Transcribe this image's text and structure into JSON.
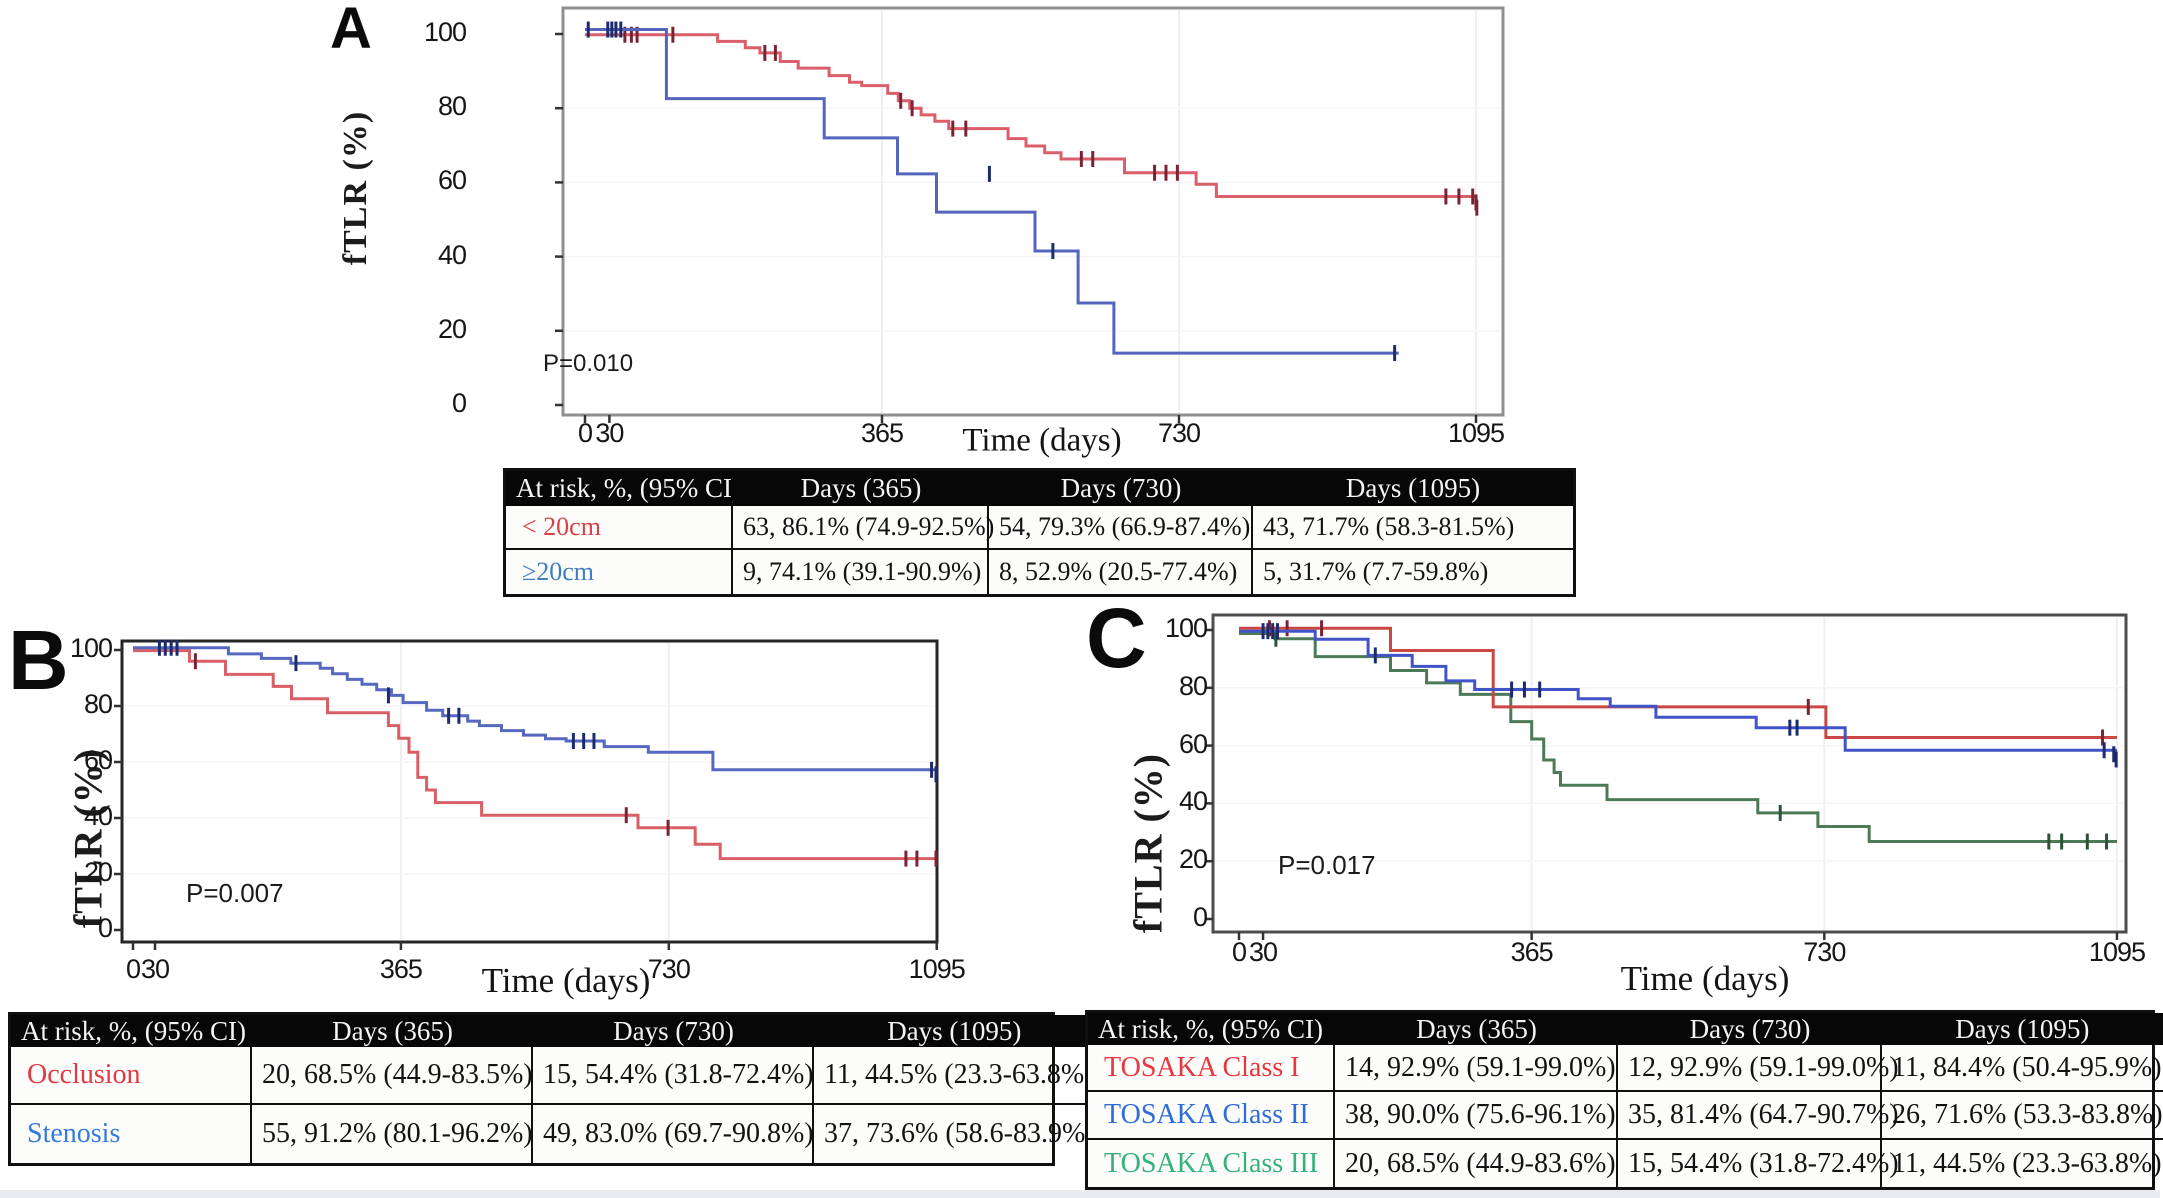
{
  "page": {
    "background": "#ffffff",
    "bottom_strip_color": "#e9ebee"
  },
  "panels": [
    {
      "letter": "A",
      "p_value": "P=0.010",
      "ylabel": "fTLR  (%)",
      "xlabel": "Time (days)",
      "table": {
        "header": [
          "At risk, %, (95% CI)",
          "Days (365)",
          "Days (730)",
          "Days (1095)"
        ],
        "rows": [
          {
            "label": "< 20cm",
            "color": "#d84045",
            "cells": [
              "63, 86.1% (74.9-92.5%)",
              "54, 79.3% (66.9-87.4%)",
              "43, 71.7% (58.3-81.5%)"
            ]
          },
          {
            "label": "≥20cm",
            "color": "#3f7ec2",
            "cells": [
              "9, 74.1% (39.1-90.9%)",
              "8, 52.9% (20.5-77.4%)",
              "5, 31.7% (7.7-59.8%)"
            ]
          }
        ]
      }
    },
    {
      "letter": "B",
      "p_value": "P=0.007",
      "ylabel": "fTLR  (%)",
      "xlabel": "Time (days)",
      "table": {
        "header": [
          "At risk, %, (95% CI)",
          "Days (365)",
          "Days (730)",
          "Days (1095)"
        ],
        "rows": [
          {
            "label": "Occlusion",
            "color": "#e23a40",
            "cells": [
              "20, 68.5% (44.9-83.5%)",
              "15, 54.4% (31.8-72.4%)",
              "11, 44.5% (23.3-63.8%)"
            ]
          },
          {
            "label": "Stenosis",
            "color": "#3579de",
            "cells": [
              "55, 91.2% (80.1-96.2%)",
              "49, 83.0% (69.7-90.8%)",
              "37, 73.6% (58.6-83.9%)"
            ]
          }
        ]
      }
    },
    {
      "letter": "C",
      "p_value": "P=0.017",
      "ylabel": "fTLR  (%)",
      "xlabel": "Time (days)",
      "table": {
        "header": [
          "At risk, %, (95% CI)",
          "Days (365)",
          "Days (730)",
          "Days (1095)"
        ],
        "rows": [
          {
            "label": "TOSAKA Class I",
            "color": "#e8373d",
            "cells": [
              "14, 92.9% (59.1-99.0%)",
              "12, 92.9% (59.1-99.0%)",
              "11, 84.4% (50.4-95.9%)"
            ]
          },
          {
            "label": "TOSAKA Class II",
            "color": "#2e6cd8",
            "cells": [
              "38, 90.0% (75.6-96.1%)",
              "35, 81.4% (64.7-90.7%)",
              "26, 71.6% (53.3-83.8%)"
            ]
          },
          {
            "label": "TOSAKA Class III",
            "color": "#35b27c",
            "cells": [
              "20, 68.5% (44.9-83.6%)",
              "15, 54.4% (31.8-72.4%)",
              "11, 44.5% (23.3-63.8%)"
            ]
          }
        ]
      }
    }
  ],
  "chart_data": [
    {
      "type": "line",
      "subtype": "kaplan_meier_step",
      "panel": "A",
      "title": "",
      "xlabel": "Time (days)",
      "ylabel": "fTLR (%)",
      "xlim": [
        0,
        1130
      ],
      "ylim": [
        0,
        105
      ],
      "xticks": [
        0,
        30,
        365,
        730,
        1095
      ],
      "yticks": [
        100,
        80,
        60,
        40,
        20,
        0
      ],
      "grid": "faint",
      "legend_position": "none",
      "p_value": "P=0.010",
      "series": [
        {
          "name": "< 20cm",
          "color": "#db5f6b",
          "censor_color": "#7c2333",
          "steps": [
            [
              0,
              99.8
            ],
            [
              163,
              98
            ],
            [
              197,
              96.3
            ],
            [
              215,
              94.9
            ],
            [
              240,
              92.6
            ],
            [
              262,
              90.8
            ],
            [
              300,
              88.8
            ],
            [
              325,
              87
            ],
            [
              340,
              86.1
            ],
            [
              372,
              84
            ],
            [
              385,
              82
            ],
            [
              399,
              80
            ],
            [
              413,
              78.2
            ],
            [
              430,
              76.5
            ],
            [
              447,
              74.5
            ],
            [
              520,
              71.8
            ],
            [
              542,
              69.8
            ],
            [
              565,
              68
            ],
            [
              585,
              66.3
            ],
            [
              663,
              62.6
            ],
            [
              751,
              59.5
            ],
            [
              776,
              56.2
            ],
            [
              1095,
              56.2
            ]
          ],
          "censors": [
            [
              49,
              99.8
            ],
            [
              57,
              99.8
            ],
            [
              64,
              99.8
            ],
            [
              108,
              99.8
            ],
            [
              221,
              94.9
            ],
            [
              234,
              94.9
            ],
            [
              388,
              82
            ],
            [
              402,
              80
            ],
            [
              452,
              74.5
            ],
            [
              468,
              74.5
            ],
            [
              610,
              66.3
            ],
            [
              624,
              66.3
            ],
            [
              700,
              62.6
            ],
            [
              714,
              62.6
            ],
            [
              728,
              62.6
            ],
            [
              1058,
              56.2
            ],
            [
              1074,
              56.2
            ],
            [
              1091,
              56.2
            ],
            [
              1095,
              54.6
            ],
            [
              1096,
              53.2
            ]
          ]
        },
        {
          "name": "≥20cm",
          "color": "#5565bd",
          "censor_color": "#1d2b6e",
          "steps": [
            [
              0,
              101.2
            ],
            [
              100,
              82.6
            ],
            [
              294,
              72
            ],
            [
              384,
              62.3
            ],
            [
              432,
              52
            ],
            [
              553,
              41.5
            ],
            [
              606,
              27.5
            ],
            [
              650,
              14
            ],
            [
              1000,
              14
            ]
          ],
          "censors": [
            [
              4,
              101.2
            ],
            [
              28,
              101.2
            ],
            [
              33,
              101.2
            ],
            [
              38,
              101.2
            ],
            [
              44,
              101.2
            ],
            [
              497,
              62.3
            ],
            [
              575,
              41.5
            ],
            [
              995,
              14
            ]
          ]
        }
      ]
    },
    {
      "type": "line",
      "subtype": "kaplan_meier_step",
      "panel": "B",
      "title": "",
      "xlabel": "Time (days)",
      "ylabel": "fTLR (%)",
      "xlim": [
        0,
        1130
      ],
      "ylim": [
        0,
        105
      ],
      "xticks": [
        0,
        30,
        365,
        730,
        1095
      ],
      "yticks": [
        100,
        80,
        60,
        40,
        20,
        0
      ],
      "grid": "faint",
      "legend_position": "none",
      "p_value": "P=0.007",
      "series": [
        {
          "name": "Occlusion",
          "color": "#d85f66",
          "censor_color": "#7c2333",
          "steps": [
            [
              0,
              99.8
            ],
            [
              77,
              96
            ],
            [
              126,
              91.3
            ],
            [
              191,
              87
            ],
            [
              216,
              82.6
            ],
            [
              265,
              77.6
            ],
            [
              348,
              73
            ],
            [
              362,
              68.5
            ],
            [
              376,
              63.5
            ],
            [
              388,
              54.5
            ],
            [
              400,
              50
            ],
            [
              412,
              45.5
            ],
            [
              475,
              41
            ],
            [
              688,
              36.5
            ],
            [
              766,
              30.6
            ],
            [
              800,
              25.5
            ],
            [
              1095,
              25.5
            ]
          ],
          "censors": [
            [
              85,
              96
            ],
            [
              672,
              41
            ],
            [
              729,
              36.5
            ],
            [
              1053,
              25.5
            ],
            [
              1068,
              25.5
            ],
            [
              1094,
              25.5
            ]
          ]
        },
        {
          "name": "Stenosis",
          "color": "#5668c0",
          "censor_color": "#1d2b6e",
          "steps": [
            [
              0,
              100.8
            ],
            [
              130,
              98.6
            ],
            [
              175,
              97
            ],
            [
              215,
              95.3
            ],
            [
              255,
              93.5
            ],
            [
              272,
              91.5
            ],
            [
              292,
              89.5
            ],
            [
              312,
              87.8
            ],
            [
              332,
              85.8
            ],
            [
              352,
              83.8
            ],
            [
              368,
              81.2
            ],
            [
              400,
              78.5
            ],
            [
              422,
              76.5
            ],
            [
              456,
              74.6
            ],
            [
              472,
              73
            ],
            [
              502,
              71.2
            ],
            [
              532,
              69.6
            ],
            [
              562,
              68.3
            ],
            [
              590,
              67.5
            ],
            [
              642,
              65.5
            ],
            [
              702,
              63.5
            ],
            [
              790,
              57.2
            ],
            [
              1095,
              57.2
            ]
          ],
          "censors": [
            [
              36,
              100.8
            ],
            [
              44,
              100.8
            ],
            [
              52,
              100.8
            ],
            [
              60,
              100.8
            ],
            [
              222,
              95.3
            ],
            [
              348,
              83.8
            ],
            [
              430,
              76.5
            ],
            [
              444,
              76.5
            ],
            [
              600,
              67.5
            ],
            [
              614,
              67.5
            ],
            [
              628,
              67.5
            ],
            [
              1088,
              57.2
            ],
            [
              1094,
              55.6
            ]
          ]
        }
      ]
    },
    {
      "type": "line",
      "subtype": "kaplan_meier_step",
      "panel": "C",
      "title": "",
      "xlabel": "Time (days)",
      "ylabel": "fTLR (%)",
      "xlim": [
        0,
        1130
      ],
      "ylim": [
        0,
        105
      ],
      "xticks": [
        0,
        30,
        365,
        730,
        1095
      ],
      "yticks": [
        100,
        80,
        60,
        40,
        20,
        0
      ],
      "grid": "faint",
      "legend_position": "none",
      "p_value": "P=0.017",
      "series": [
        {
          "name": "TOSAKA Class I",
          "color": "#c94843",
          "censor_color": "#7c2333",
          "steps": [
            [
              0,
              100.6
            ],
            [
              189,
              92.9
            ],
            [
              317,
              73.4
            ],
            [
              732,
              62.8
            ],
            [
              1095,
              62.8
            ]
          ],
          "censors": [
            [
              38,
              100.6
            ],
            [
              60,
              100.6
            ],
            [
              103,
              100.6
            ],
            [
              710,
              73.4
            ],
            [
              1077,
              62.8
            ]
          ]
        },
        {
          "name": "TOSAKA Class II",
          "color": "#4054c8",
          "censor_color": "#1d2b6e",
          "steps": [
            [
              0,
              99.6
            ],
            [
              95,
              96.8
            ],
            [
              161,
              91.2
            ],
            [
              216,
              87.4
            ],
            [
              258,
              82.4
            ],
            [
              294,
              79.4
            ],
            [
              423,
              76.2
            ],
            [
              463,
              73.6
            ],
            [
              520,
              69.8
            ],
            [
              645,
              66.2
            ],
            [
              756,
              58.4
            ],
            [
              1095,
              58.4
            ]
          ],
          "censors": [
            [
              30,
              99.6
            ],
            [
              36,
              99.6
            ],
            [
              42,
              99.6
            ],
            [
              48,
              99.6
            ],
            [
              170,
              91.2
            ],
            [
              340,
              79.4
            ],
            [
              356,
              79.4
            ],
            [
              375,
              79.4
            ],
            [
              687,
              66.2
            ],
            [
              696,
              66.2
            ],
            [
              1079,
              58.4
            ],
            [
              1091,
              57
            ],
            [
              1094,
              55.2
            ]
          ]
        },
        {
          "name": "TOSAKA Class III",
          "color": "#4c7a57",
          "censor_color": "#2d5136",
          "steps": [
            [
              0,
              98.8
            ],
            [
              45,
              97
            ],
            [
              95,
              90.8
            ],
            [
              189,
              86
            ],
            [
              234,
              81.7
            ],
            [
              276,
              77.7
            ],
            [
              339,
              68.3
            ],
            [
              365,
              62.3
            ],
            [
              380,
              55
            ],
            [
              393,
              50.7
            ],
            [
              401,
              46.3
            ],
            [
              459,
              41.3
            ],
            [
              647,
              36.7
            ],
            [
              722,
              32
            ],
            [
              786,
              26.8
            ],
            [
              1095,
              26.8
            ]
          ],
          "censors": [
            [
              46,
              97
            ],
            [
              675,
              36.7
            ],
            [
              1010,
              26.8
            ],
            [
              1026,
              26.8
            ],
            [
              1058,
              26.8
            ],
            [
              1082,
              26.8
            ]
          ]
        }
      ]
    }
  ]
}
